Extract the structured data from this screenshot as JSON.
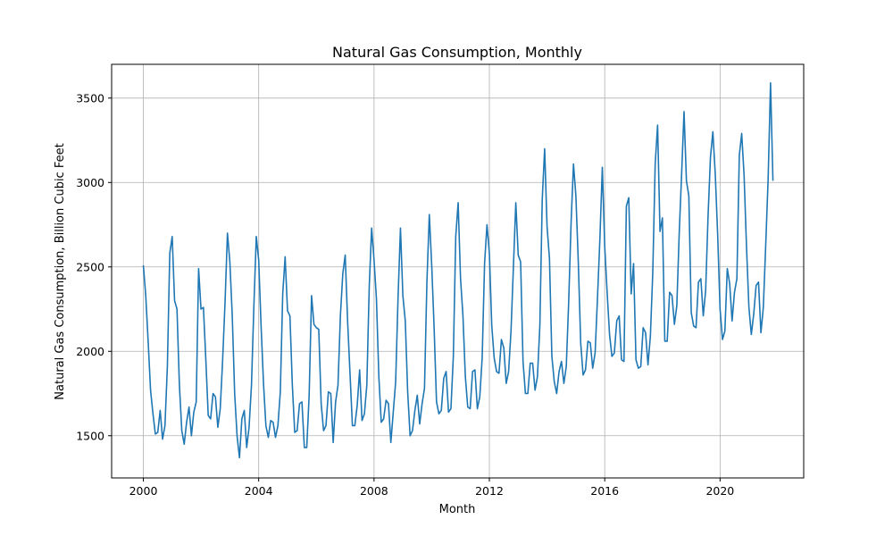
{
  "chart_data": {
    "type": "line",
    "title": "Natural Gas Consumption, Monthly",
    "xlabel": "Month",
    "ylabel": "Natural Gas Consumption, Billion Cubic Feet",
    "xlim": [
      1998.9,
      2022.9
    ],
    "ylim": [
      1250,
      3700
    ],
    "x_ticks": [
      2000,
      2004,
      2008,
      2012,
      2016,
      2020
    ],
    "y_ticks": [
      1500,
      2000,
      2500,
      3000,
      3500
    ],
    "x_tick_labels": [
      "2000",
      "2004",
      "2008",
      "2012",
      "2016",
      "2020"
    ],
    "y_tick_labels": [
      "1500",
      "2000",
      "2500",
      "3000",
      "3500"
    ],
    "grid": true,
    "line_color": "#1f77b4",
    "series": [
      {
        "x_start": "2000-01",
        "interval": "month",
        "values": [
          2510,
          2330,
          2060,
          1770,
          1630,
          1510,
          1520,
          1650,
          1480,
          1560,
          1910,
          2580,
          2680,
          2300,
          2250,
          1800,
          1530,
          1450,
          1580,
          1670,
          1500,
          1640,
          1700,
          2490,
          2250,
          2260,
          1950,
          1620,
          1600,
          1750,
          1730,
          1550,
          1660,
          1950,
          2290,
          2700,
          2530,
          2210,
          1750,
          1500,
          1370,
          1600,
          1650,
          1430,
          1550,
          1800,
          2270,
          2680,
          2540,
          2150,
          1810,
          1560,
          1490,
          1590,
          1580,
          1490,
          1560,
          1760,
          2340,
          2560,
          2240,
          2210,
          1800,
          1520,
          1530,
          1690,
          1700,
          1430,
          1430,
          1740,
          2330,
          2160,
          2140,
          2130,
          1690,
          1530,
          1560,
          1760,
          1750,
          1460,
          1700,
          1800,
          2210,
          2460,
          2570,
          2180,
          1870,
          1560,
          1560,
          1680,
          1890,
          1590,
          1630,
          1800,
          2380,
          2730,
          2540,
          2310,
          1850,
          1580,
          1600,
          1710,
          1690,
          1460,
          1640,
          1820,
          2320,
          2730,
          2330,
          2180,
          1760,
          1500,
          1530,
          1650,
          1740,
          1570,
          1690,
          1780,
          2410,
          2810,
          2510,
          2140,
          1700,
          1630,
          1650,
          1840,
          1880,
          1640,
          1660,
          1970,
          2680,
          2880,
          2430,
          2210,
          1850,
          1670,
          1660,
          1880,
          1890,
          1660,
          1730,
          1960,
          2520,
          2750,
          2580,
          2150,
          1960,
          1880,
          1870,
          2070,
          2020,
          1810,
          1880,
          2120,
          2500,
          2880,
          2570,
          2530,
          1940,
          1750,
          1750,
          1930,
          1930,
          1770,
          1850,
          2150,
          2900,
          3200,
          2740,
          2550,
          1970,
          1820,
          1750,
          1880,
          1940,
          1810,
          1910,
          2290,
          2760,
          3110,
          2920,
          2530,
          2050,
          1860,
          1890,
          2060,
          2050,
          1900,
          1990,
          2320,
          2670,
          3090,
          2620,
          2350,
          2100,
          1970,
          1990,
          2180,
          2210,
          1950,
          1940,
          2860,
          2910,
          2340,
          2520,
          1950,
          1900,
          1910,
          2140,
          2110,
          1920,
          2090,
          2470,
          3110,
          3340,
          2710,
          2790,
          2060,
          2060,
          2350,
          2330,
          2160,
          2270,
          2700,
          3050,
          3420,
          3010,
          2920,
          2230,
          2150,
          2140,
          2410,
          2430,
          2210,
          2360,
          2800,
          3150,
          3300,
          3050,
          2690,
          2250,
          2070,
          2120,
          2490,
          2400,
          2180,
          2350,
          2430,
          3160,
          3290,
          3040,
          2620,
          2260,
          2100,
          2220,
          2390,
          2410,
          2110,
          2260,
          2630,
          3020,
          3590,
          3010
        ]
      }
    ]
  }
}
